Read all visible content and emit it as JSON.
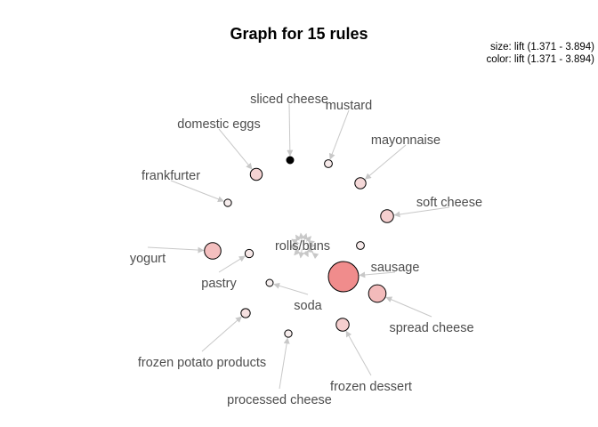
{
  "title": "Graph for 15 rules",
  "legend": {
    "size": "size: lift (1.371 - 3.894)",
    "color": "color: lift (1.371 - 3.894)"
  },
  "colors": {
    "edge": "#c8c8c8",
    "node_stroke": "#000000",
    "label": "#4d4d4d",
    "low": "#f7f0f0",
    "high": "#f08c8c"
  },
  "center": "rolls/buns",
  "rules": [
    {
      "item": "sliced cheese",
      "lift": 1.37
    },
    {
      "item": "mustard",
      "lift": 1.45
    },
    {
      "item": "domestic eggs",
      "lift": 1.9
    },
    {
      "item": "mayonnaise",
      "lift": 1.8
    },
    {
      "item": "frankfurter",
      "lift": 1.4
    },
    {
      "item": "soft cheese",
      "lift": 2.0
    },
    {
      "item": "yogurt",
      "lift": 2.4
    },
    {
      "item": "pastry",
      "lift": 1.5
    },
    {
      "item": "sausage",
      "lift": 3.894
    },
    {
      "item": "soda",
      "lift": 1.371
    },
    {
      "item": "spread cheese",
      "lift": 2.5
    },
    {
      "item": "frozen potato products",
      "lift": 1.6
    },
    {
      "item": "processed cheese",
      "lift": 1.4
    },
    {
      "item": "frozen dessert",
      "lift": 2.0
    },
    {
      "item": "rolls/buns (rule 15)",
      "lift": 1.45
    }
  ]
}
